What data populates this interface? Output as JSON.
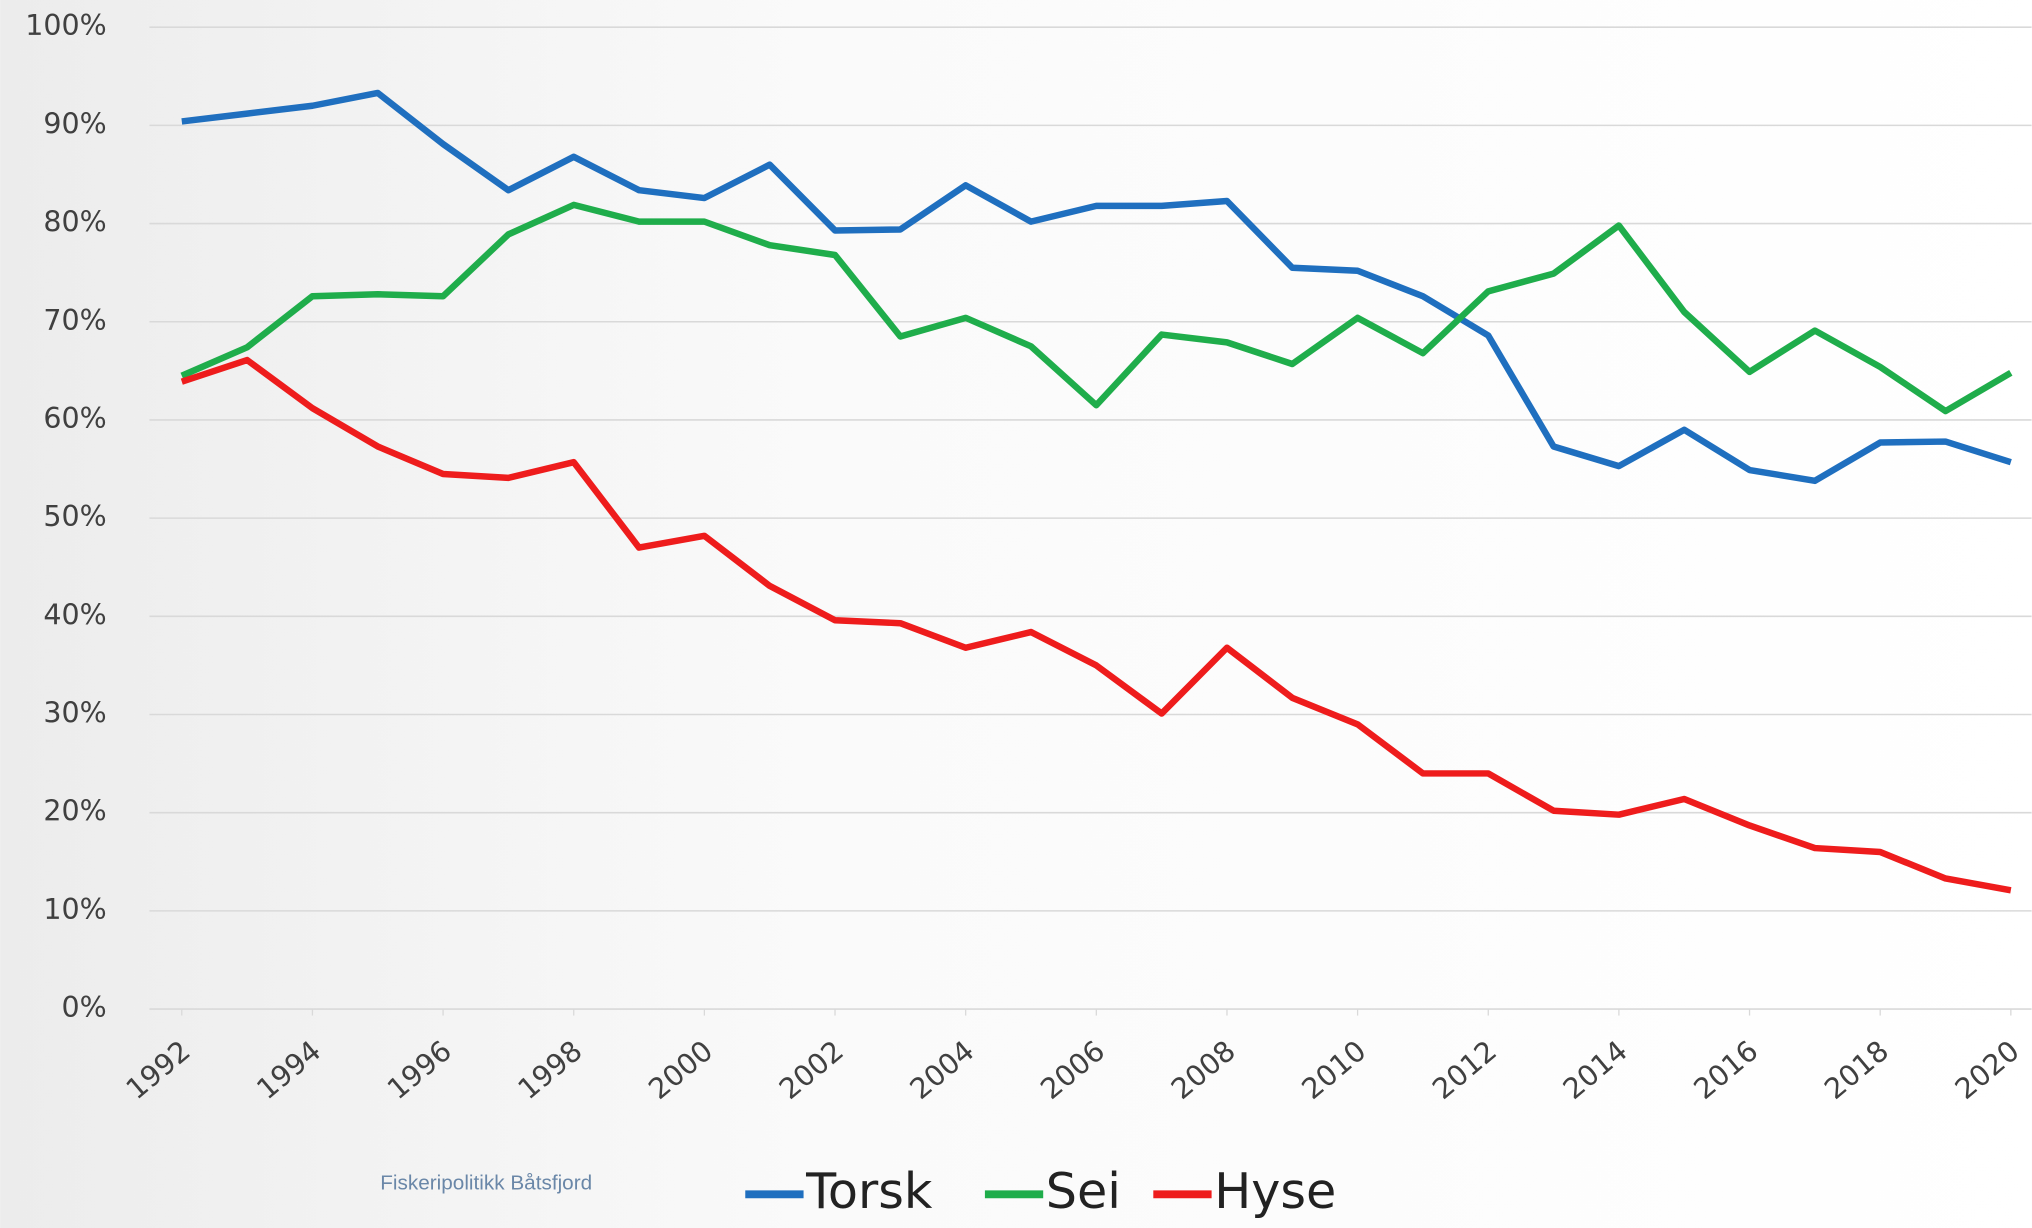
{
  "chart_data": {
    "type": "line",
    "source": "Fiskeripolitikk Båtsfjord",
    "x": [
      1992,
      1993,
      1994,
      1995,
      1996,
      1997,
      1998,
      1999,
      2000,
      2001,
      2002,
      2003,
      2004,
      2005,
      2006,
      2007,
      2008,
      2009,
      2010,
      2011,
      2012,
      2013,
      2014,
      2015,
      2016,
      2017,
      2018,
      2019,
      2020
    ],
    "xlim": [
      1992,
      2020
    ],
    "xticks": [
      1992,
      1994,
      1996,
      1998,
      2000,
      2002,
      2004,
      2006,
      2008,
      2010,
      2012,
      2014,
      2016,
      2018,
      2020
    ],
    "ylim": [
      0,
      100
    ],
    "yticks": [
      {
        "value": 0,
        "label": "0%"
      },
      {
        "value": 10,
        "label": "10%"
      },
      {
        "value": 20,
        "label": "20%"
      },
      {
        "value": 30,
        "label": "30%"
      },
      {
        "value": 40,
        "label": "40%"
      },
      {
        "value": 50,
        "label": "50%"
      },
      {
        "value": 60,
        "label": "60%"
      },
      {
        "value": 70,
        "label": "70%"
      },
      {
        "value": 80,
        "label": "80%"
      },
      {
        "value": 90,
        "label": "90%"
      },
      {
        "value": 100,
        "label": "100%"
      }
    ],
    "grid": true,
    "legend": "bottom",
    "series": [
      {
        "name": "Torsk",
        "color": "#1f6fbf",
        "values": [
          90.4,
          91.2,
          92.0,
          93.3,
          88.1,
          83.4,
          86.8,
          83.4,
          82.6,
          86.0,
          79.3,
          79.4,
          83.9,
          80.2,
          81.8,
          81.8,
          82.3,
          75.5,
          75.2,
          72.6,
          68.6,
          57.3,
          55.3,
          59.0,
          54.9,
          53.8,
          57.7,
          57.8,
          55.7
        ]
      },
      {
        "name": "Sei",
        "color": "#1fad4b",
        "values": [
          64.5,
          67.4,
          72.6,
          72.8,
          72.6,
          78.9,
          81.9,
          80.2,
          80.2,
          77.8,
          76.8,
          68.5,
          70.4,
          67.5,
          61.5,
          68.7,
          67.9,
          65.7,
          70.4,
          66.8,
          73.1,
          74.9,
          79.8,
          71.0,
          64.9,
          69.1,
          65.4,
          60.9,
          64.8
        ]
      },
      {
        "name": "Hyse",
        "color": "#ee1c1c",
        "values": [
          63.9,
          66.1,
          61.2,
          57.3,
          54.5,
          54.1,
          55.7,
          47.0,
          48.2,
          43.1,
          39.6,
          39.3,
          36.8,
          38.4,
          35.0,
          30.1,
          36.8,
          31.7,
          29.0,
          24.0,
          24.0,
          20.2,
          19.8,
          21.4,
          18.7,
          16.4,
          16.0,
          13.3,
          12.1
        ]
      }
    ]
  }
}
